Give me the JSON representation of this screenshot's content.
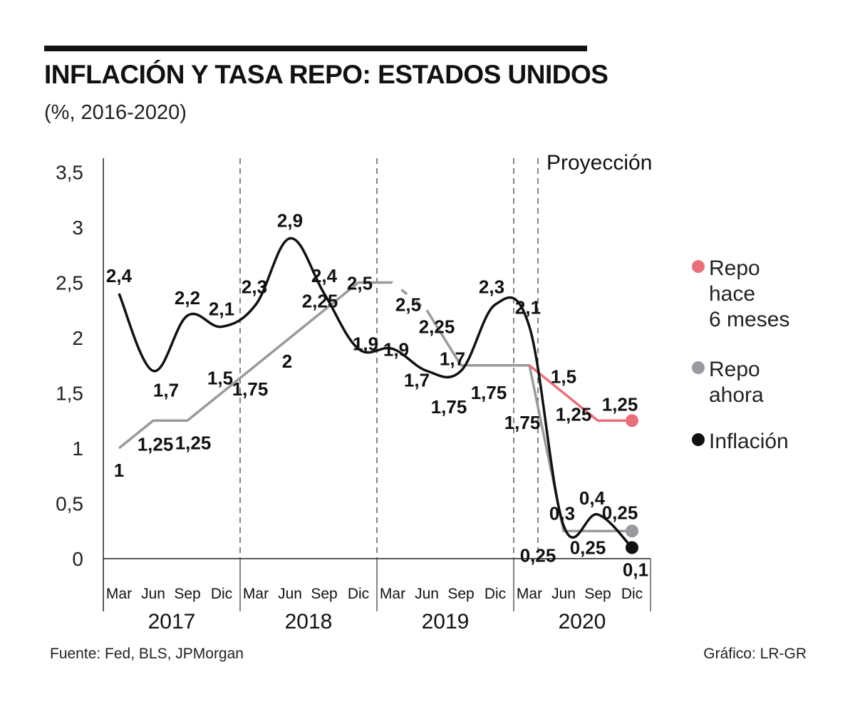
{
  "title": "INFLACIÓN Y TASA REPO: ESTADOS UNIDOS",
  "subtitle": "(%, 2016-2020)",
  "footer": {
    "source": "Fuente: Fed, BLS, JPMorgan",
    "credit": "Gráfico: LR-GR"
  },
  "chart_data": {
    "type": "line",
    "title": "INFLACIÓN Y TASA REPO: ESTADOS UNIDOS",
    "subtitle": "(%, 2016-2020)",
    "ylim": [
      0,
      3.5
    ],
    "yticks": [
      "0",
      "0,5",
      "1",
      "1,5",
      "2",
      "2,5",
      "3",
      "3,5"
    ],
    "years": [
      "2017",
      "2018",
      "2019",
      "2020"
    ],
    "months": [
      "Mar",
      "Jun",
      "Sep",
      "Dic"
    ],
    "projection_label": "Proyección",
    "projection_start_index": 12.25,
    "legend_position": "right",
    "series": [
      {
        "name": "Inflación",
        "legend": "Inflación",
        "color": "#111111",
        "points": [
          {
            "i": 0,
            "v": 2.4,
            "label": "2,4"
          },
          {
            "i": 1,
            "v": 1.7,
            "label": "1,7"
          },
          {
            "i": 2,
            "v": 2.2,
            "label": "2,2"
          },
          {
            "i": 3,
            "v": 2.1,
            "label": "2,1"
          },
          {
            "i": 4,
            "v": 2.3,
            "label": "2,3"
          },
          {
            "i": 5,
            "v": 2.9,
            "label": "2,9"
          },
          {
            "i": 6,
            "v": 2.4,
            "label": "2,4"
          },
          {
            "i": 7,
            "v": 1.9,
            "label": "1,9"
          },
          {
            "i": 8,
            "v": 1.9,
            "label": "1,9"
          },
          {
            "i": 9,
            "v": 1.7,
            "label": "1,7"
          },
          {
            "i": 10,
            "v": 1.7,
            "label": "1,7"
          },
          {
            "i": 11,
            "v": 2.3,
            "label": "2,3"
          },
          {
            "i": 12,
            "v": 2.1,
            "label": "2,1"
          },
          {
            "i": 13,
            "v": 0.3,
            "label": "0,3"
          },
          {
            "i": 14,
            "v": 0.4,
            "label": "0,4"
          },
          {
            "i": 15,
            "v": 0.1,
            "label": "0,1"
          }
        ]
      },
      {
        "name": "Repo ahora",
        "legend": [
          "Repo",
          "ahora"
        ],
        "color": "#9a9a9e",
        "points": [
          {
            "i": 0,
            "v": 1.0,
            "label": "1"
          },
          {
            "i": 1,
            "v": 1.25,
            "label": "1,25"
          },
          {
            "i": 2,
            "v": 1.25,
            "label": "1,25"
          },
          {
            "i": 3,
            "v": 1.5,
            "label": "1,5"
          },
          {
            "i": 4,
            "v": 1.75,
            "label": "1,75"
          },
          {
            "i": 5,
            "v": 2.0,
            "label": "2"
          },
          {
            "i": 6,
            "v": 2.25,
            "label": "2,25"
          },
          {
            "i": 7,
            "v": 2.5,
            "label": "2,5"
          },
          {
            "i": 8,
            "v": 2.5,
            "label": "2,5"
          },
          {
            "i": 9,
            "v": 2.25,
            "label": "2,25"
          },
          {
            "i": 10,
            "v": 1.75,
            "label": "1,75"
          },
          {
            "i": 11,
            "v": 1.75,
            "label": "1,75"
          },
          {
            "i": 12,
            "v": 1.75,
            "label": "1,75"
          },
          {
            "i": 13,
            "v": 0.25,
            "label": "0,25"
          },
          {
            "i": 14,
            "v": 0.25,
            "label": "0,25"
          },
          {
            "i": 15,
            "v": 0.25,
            "label": "0,25"
          }
        ]
      },
      {
        "name": "Repo hace 6 meses",
        "legend": [
          "Repo",
          "hace",
          "6 meses"
        ],
        "color": "#e8707c",
        "points": [
          {
            "i": 12,
            "v": 1.75,
            "label": ""
          },
          {
            "i": 13,
            "v": 1.5,
            "label": "1,5"
          },
          {
            "i": 14,
            "v": 1.25,
            "label": "1,25"
          },
          {
            "i": 15,
            "v": 1.25,
            "label": "1,25"
          }
        ]
      }
    ]
  }
}
